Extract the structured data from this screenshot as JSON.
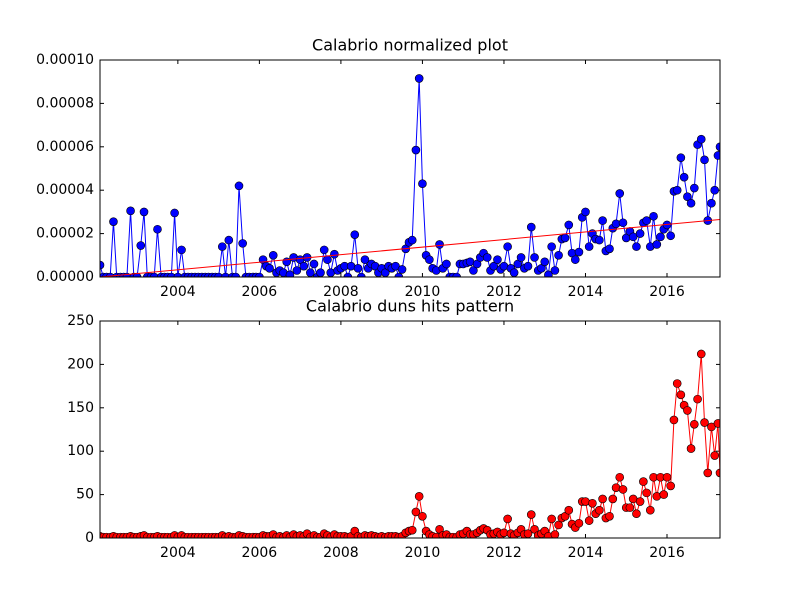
{
  "chart_data": [
    {
      "type": "line",
      "title": "Calabrio normalized plot",
      "x": [
        2002.09,
        2002.17,
        2002.25,
        2002.34,
        2002.42,
        2002.5,
        2002.59,
        2002.67,
        2002.75,
        2002.84,
        2002.92,
        2003,
        2003.09,
        2003.17,
        2003.25,
        2003.34,
        2003.42,
        2003.5,
        2003.59,
        2003.67,
        2003.75,
        2003.84,
        2003.92,
        2004,
        2004.09,
        2004.17,
        2004.25,
        2004.34,
        2004.42,
        2004.5,
        2004.59,
        2004.67,
        2004.75,
        2004.84,
        2004.92,
        2005,
        2005.09,
        2005.17,
        2005.25,
        2005.34,
        2005.42,
        2005.5,
        2005.59,
        2005.67,
        2005.75,
        2005.84,
        2005.92,
        2006,
        2006.09,
        2006.17,
        2006.25,
        2006.34,
        2006.42,
        2006.5,
        2006.59,
        2006.67,
        2006.75,
        2006.84,
        2006.92,
        2007,
        2007.09,
        2007.17,
        2007.25,
        2007.34,
        2007.42,
        2007.5,
        2007.59,
        2007.67,
        2007.75,
        2007.84,
        2007.92,
        2008,
        2008.09,
        2008.17,
        2008.25,
        2008.34,
        2008.42,
        2008.5,
        2008.59,
        2008.67,
        2008.75,
        2008.84,
        2008.92,
        2009,
        2009.09,
        2009.17,
        2009.25,
        2009.34,
        2009.42,
        2009.5,
        2009.59,
        2009.67,
        2009.75,
        2009.84,
        2009.92,
        2010,
        2010.09,
        2010.17,
        2010.25,
        2010.34,
        2010.42,
        2010.5,
        2010.59,
        2010.67,
        2010.75,
        2010.84,
        2010.92,
        2011,
        2011.09,
        2011.17,
        2011.25,
        2011.34,
        2011.42,
        2011.5,
        2011.59,
        2011.67,
        2011.75,
        2011.84,
        2011.92,
        2012,
        2012.09,
        2012.17,
        2012.25,
        2012.34,
        2012.42,
        2012.5,
        2012.59,
        2012.67,
        2012.75,
        2012.84,
        2012.92,
        2013,
        2013.09,
        2013.17,
        2013.25,
        2013.34,
        2013.42,
        2013.5,
        2013.59,
        2013.67,
        2013.75,
        2013.84,
        2013.92,
        2014,
        2014.09,
        2014.17,
        2014.25,
        2014.34,
        2014.42,
        2014.5,
        2014.59,
        2014.67,
        2014.75,
        2014.84,
        2014.92,
        2015,
        2015.09,
        2015.17,
        2015.25,
        2015.34,
        2015.42,
        2015.5,
        2015.59,
        2015.67,
        2015.75,
        2015.84,
        2015.92,
        2016,
        2016.09,
        2016.17,
        2016.25,
        2016.34,
        2016.42,
        2016.5,
        2016.59,
        2016.67,
        2016.75,
        2016.84,
        2016.92,
        2017,
        2017.09,
        2017.17,
        2017.25,
        2017.3
      ],
      "series": [
        {
          "color": "#0000ff",
          "marker": true,
          "values": [
            5.5e-06,
            0,
            0,
            0,
            2.55e-05,
            0,
            0,
            0,
            0,
            3.05e-05,
            0,
            0,
            1.45e-05,
            3e-05,
            0,
            0,
            0,
            2.2e-05,
            0,
            0,
            0,
            0,
            2.95e-05,
            0,
            1.25e-05,
            0,
            0,
            0,
            0,
            0,
            0,
            0,
            0,
            0,
            0,
            0,
            1.4e-05,
            0,
            1.7e-05,
            0,
            0,
            4.2e-05,
            1.55e-05,
            0,
            0,
            0,
            0,
            0,
            8e-06,
            5e-06,
            4e-06,
            1e-05,
            2e-06,
            3e-06,
            2e-06,
            7e-06,
            1e-06,
            9e-06,
            3e-06,
            8e-06,
            5e-06,
            9e-06,
            2e-06,
            6e-06,
            0,
            2e-06,
            1.25e-05,
            8e-06,
            2e-06,
            1.05e-05,
            3e-06,
            4e-06,
            5e-06,
            0,
            5e-06,
            1.95e-05,
            4e-06,
            0,
            8e-06,
            4e-06,
            6e-06,
            5e-06,
            2e-06,
            4e-06,
            2e-06,
            5e-06,
            4e-06,
            5e-06,
            0,
            3.5e-06,
            1.3e-05,
            1.6e-05,
            1.7e-05,
            5.85e-05,
            9.15e-05,
            4.3e-05,
            1e-05,
            8e-06,
            4e-06,
            3e-06,
            1.5e-05,
            4e-06,
            6e-06,
            0,
            0,
            0,
            6e-06,
            6e-06,
            6.5e-06,
            7e-06,
            3e-06,
            6e-06,
            9e-06,
            1.1e-05,
            9e-06,
            3e-06,
            5e-06,
            8e-06,
            3.5e-06,
            5e-06,
            1.4e-05,
            4e-06,
            2e-06,
            6e-06,
            9e-06,
            4e-06,
            5e-06,
            2.3e-05,
            9e-06,
            3e-06,
            4e-06,
            7e-06,
            1e-06,
            1.4e-05,
            3e-06,
            1e-05,
            1.75e-05,
            1.8e-05,
            2.4e-05,
            1.1e-05,
            8e-06,
            1.15e-05,
            2.75e-05,
            3e-05,
            1.4e-05,
            2e-05,
            1.75e-05,
            1.7e-05,
            2.6e-05,
            1.2e-05,
            1.3e-05,
            2.25e-05,
            2.45e-05,
            3.85e-05,
            2.5e-05,
            1.8e-05,
            2.1e-05,
            1.85e-05,
            1.4e-05,
            2e-05,
            2.5e-05,
            2.6e-05,
            1.4e-05,
            2.8e-05,
            1.5e-05,
            1.85e-05,
            2.2e-05,
            2.4e-05,
            1.9e-05,
            3.95e-05,
            4e-05,
            5.5e-05,
            4.6e-05,
            3.7e-05,
            3.4e-05,
            4.1e-05,
            6.1e-05,
            6.35e-05,
            5.4e-05,
            2.6e-05,
            3.4e-05,
            4e-05,
            5.6e-05,
            6e-05
          ]
        },
        {
          "color": "#ff0000",
          "marker": false,
          "x": [
            2002.09,
            2017.3
          ],
          "values": [
            0,
            2.65e-05
          ]
        }
      ],
      "xlim": [
        2002.09,
        2017.3
      ],
      "xticks": [
        2004,
        2006,
        2008,
        2010,
        2012,
        2014,
        2016
      ],
      "ylim": [
        0,
        0.0001
      ],
      "yticks": [
        {
          "value": 0,
          "label": "0.00000"
        },
        {
          "value": 2e-05,
          "label": "0.00002"
        },
        {
          "value": 4e-05,
          "label": "0.00004"
        },
        {
          "value": 6e-05,
          "label": "0.00006"
        },
        {
          "value": 8e-05,
          "label": "0.00008"
        },
        {
          "value": 0.0001,
          "label": "0.00010"
        }
      ]
    },
    {
      "type": "line",
      "title": "Calabrio duns hits pattern",
      "x": [
        2002.09,
        2002.17,
        2002.25,
        2002.34,
        2002.42,
        2002.5,
        2002.59,
        2002.67,
        2002.75,
        2002.84,
        2002.92,
        2003,
        2003.09,
        2003.17,
        2003.25,
        2003.34,
        2003.42,
        2003.5,
        2003.59,
        2003.67,
        2003.75,
        2003.84,
        2003.92,
        2004,
        2004.09,
        2004.17,
        2004.25,
        2004.34,
        2004.42,
        2004.5,
        2004.59,
        2004.67,
        2004.75,
        2004.84,
        2004.92,
        2005,
        2005.09,
        2005.17,
        2005.25,
        2005.34,
        2005.42,
        2005.5,
        2005.59,
        2005.67,
        2005.75,
        2005.84,
        2005.92,
        2006,
        2006.09,
        2006.17,
        2006.25,
        2006.34,
        2006.42,
        2006.5,
        2006.59,
        2006.67,
        2006.75,
        2006.84,
        2006.92,
        2007,
        2007.09,
        2007.17,
        2007.25,
        2007.34,
        2007.42,
        2007.5,
        2007.59,
        2007.67,
        2007.75,
        2007.84,
        2007.92,
        2008,
        2008.09,
        2008.17,
        2008.25,
        2008.34,
        2008.42,
        2008.5,
        2008.59,
        2008.67,
        2008.75,
        2008.84,
        2008.92,
        2009,
        2009.09,
        2009.17,
        2009.25,
        2009.34,
        2009.42,
        2009.5,
        2009.59,
        2009.67,
        2009.75,
        2009.84,
        2009.92,
        2010,
        2010.09,
        2010.17,
        2010.25,
        2010.34,
        2010.42,
        2010.5,
        2010.59,
        2010.67,
        2010.75,
        2010.84,
        2010.92,
        2011,
        2011.09,
        2011.17,
        2011.25,
        2011.34,
        2011.42,
        2011.5,
        2011.59,
        2011.67,
        2011.75,
        2011.84,
        2011.92,
        2012,
        2012.09,
        2012.17,
        2012.25,
        2012.34,
        2012.42,
        2012.5,
        2012.59,
        2012.67,
        2012.75,
        2012.84,
        2012.92,
        2013,
        2013.09,
        2013.17,
        2013.25,
        2013.34,
        2013.42,
        2013.5,
        2013.59,
        2013.67,
        2013.75,
        2013.84,
        2013.92,
        2014,
        2014.09,
        2014.17,
        2014.25,
        2014.34,
        2014.42,
        2014.5,
        2014.59,
        2014.67,
        2014.75,
        2014.84,
        2014.92,
        2015,
        2015.09,
        2015.17,
        2015.25,
        2015.34,
        2015.42,
        2015.5,
        2015.59,
        2015.67,
        2015.75,
        2015.84,
        2015.92,
        2016,
        2016.09,
        2016.17,
        2016.25,
        2016.34,
        2016.42,
        2016.5,
        2016.59,
        2016.67,
        2016.75,
        2016.84,
        2016.92,
        2017,
        2017.09,
        2017.17,
        2017.25,
        2017.3
      ],
      "series": [
        {
          "color": "#ff0000",
          "marker": true,
          "values": [
            2,
            1,
            1,
            1,
            2,
            1,
            1,
            1,
            1,
            2,
            1,
            1,
            2,
            3,
            1,
            1,
            1,
            2,
            1,
            1,
            1,
            1,
            3,
            1,
            3,
            1,
            1,
            1,
            1,
            1,
            1,
            1,
            1,
            1,
            1,
            1,
            3,
            1,
            2,
            1,
            1,
            3,
            2,
            1,
            1,
            1,
            1,
            1,
            3,
            2,
            2,
            4,
            1,
            2,
            1,
            3,
            1,
            4,
            2,
            3,
            2,
            5,
            1,
            3,
            1,
            1,
            5,
            3,
            1,
            4,
            2,
            2,
            2,
            1,
            2,
            8,
            2,
            1,
            3,
            2,
            3,
            2,
            1,
            2,
            1,
            2,
            2,
            2,
            1,
            2,
            6,
            8,
            9,
            30,
            48,
            25,
            8,
            4,
            2,
            1,
            10,
            3,
            4,
            1,
            1,
            1,
            4,
            5,
            8,
            4,
            4,
            6,
            9,
            11,
            9,
            4,
            5,
            7,
            4,
            6,
            22,
            5,
            3,
            6,
            10,
            4,
            5,
            27,
            10,
            3,
            5,
            8,
            2,
            22,
            4,
            15,
            23,
            25,
            32,
            16,
            12,
            17,
            42,
            42,
            20,
            40,
            28,
            32,
            45,
            23,
            25,
            45,
            58,
            70,
            56,
            35,
            35,
            45,
            28,
            42,
            65,
            52,
            32,
            70,
            48,
            70,
            50,
            70,
            60,
            136,
            178,
            165,
            153,
            147,
            103,
            131,
            160,
            212,
            133,
            75,
            128,
            95,
            132,
            75
          ]
        }
      ],
      "xlim": [
        2002.09,
        2017.3
      ],
      "xticks": [
        2004,
        2006,
        2008,
        2010,
        2012,
        2014,
        2016
      ],
      "ylim": [
        0,
        250
      ],
      "yticks": [
        0,
        50,
        100,
        150,
        200,
        250
      ]
    }
  ]
}
